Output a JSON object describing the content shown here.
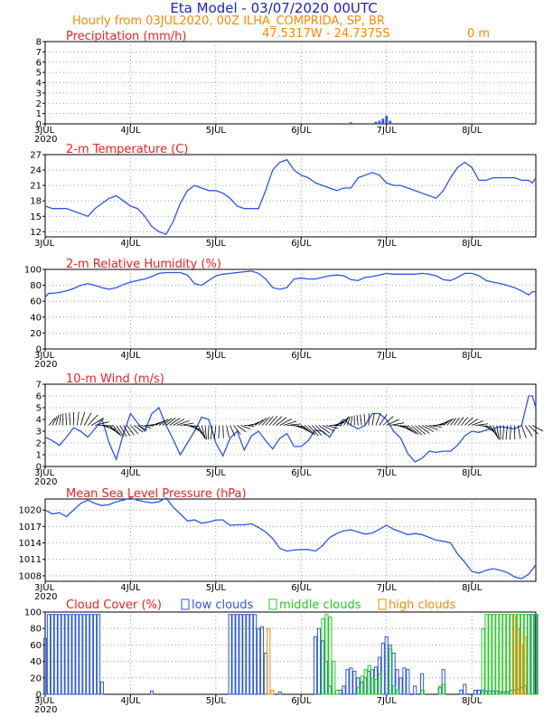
{
  "header": {
    "title": "Eta Model - 03/07/2020 00UTC",
    "subtitle": "Hourly from 03JUL2020, 00Z  ILHA_COMPRIDA, SP, BR",
    "coords": "47.5317W - 24.7375S",
    "elevation": "0  m"
  },
  "colors": {
    "title": "#2222cc",
    "subtitle": "#ff8800",
    "panel_title": "#ee2222",
    "series": "#2b57e6",
    "barbs": "#000000",
    "low_clouds": "#2b57e6",
    "middle_clouds": "#22cc22",
    "high_clouds": "#ff8800"
  },
  "x_axis": {
    "range_hours": [
      0,
      138
    ],
    "ticks": [
      {
        "hour": 0,
        "label": "3JUL",
        "year": "2020"
      },
      {
        "hour": 24,
        "label": "4JUL"
      },
      {
        "hour": 48,
        "label": "5JUL"
      },
      {
        "hour": 72,
        "label": "6JUL"
      },
      {
        "hour": 96,
        "label": "7JUL"
      },
      {
        "hour": 120,
        "label": "8JUL"
      }
    ]
  },
  "chart_data": [
    {
      "id": "precip",
      "type": "bar",
      "title": "Precipitation (mm/h)",
      "ylim": [
        0,
        8
      ],
      "yticks": [
        0,
        1,
        2,
        3,
        4,
        5,
        6,
        7,
        8
      ],
      "dashed_line": 0,
      "bars": [
        {
          "x": 86,
          "v": 0.15
        },
        {
          "x": 93,
          "v": 0.2
        },
        {
          "x": 94,
          "v": 0.3
        },
        {
          "x": 95,
          "v": 0.5
        },
        {
          "x": 96,
          "v": 0.8
        },
        {
          "x": 97,
          "v": 0.3
        }
      ]
    },
    {
      "id": "temp",
      "type": "line",
      "title": "2-m Temperature (C)",
      "ylim": [
        11,
        27
      ],
      "yticks": [
        12,
        15,
        18,
        21,
        24,
        27
      ],
      "x": [
        0,
        2,
        4,
        6,
        8,
        10,
        12,
        14,
        16,
        18,
        20,
        22,
        24,
        26,
        28,
        30,
        32,
        34,
        36,
        38,
        40,
        42,
        44,
        46,
        48,
        50,
        52,
        54,
        56,
        58,
        60,
        62,
        64,
        66,
        68,
        70,
        72,
        74,
        76,
        78,
        80,
        82,
        84,
        86,
        88,
        90,
        92,
        94,
        96,
        98,
        100,
        102,
        104,
        106,
        108,
        110,
        112,
        114,
        116,
        118,
        120,
        122,
        124,
        126,
        128,
        130,
        132,
        134,
        136,
        137,
        138
      ],
      "values": [
        17,
        16.5,
        16.5,
        16.5,
        16,
        15.5,
        15,
        16.5,
        17.5,
        18.5,
        19,
        18,
        17,
        16.5,
        15,
        13,
        12,
        11.5,
        14,
        17.5,
        20,
        21,
        20.5,
        20,
        20,
        19.5,
        18.5,
        17,
        16.5,
        16.5,
        16.5,
        20,
        24,
        25.5,
        26,
        24,
        23,
        22.5,
        21.5,
        21,
        20.5,
        20,
        20.5,
        20.5,
        22.5,
        23,
        23.5,
        23,
        21.5,
        21,
        21,
        20.5,
        20,
        19.5,
        19,
        18.5,
        20,
        22.5,
        24.5,
        25.5,
        24.5,
        22,
        22,
        22.5,
        22.5,
        22.5,
        22.5,
        22,
        22,
        21.5,
        22.5
      ]
    },
    {
      "id": "rh",
      "type": "line",
      "title": "2-m Relative Humidity (%)",
      "ylim": [
        0,
        100
      ],
      "yticks": [
        0,
        20,
        40,
        60,
        80,
        100
      ],
      "dashed_line": 100,
      "x": [
        0,
        1,
        2,
        4,
        6,
        8,
        10,
        12,
        14,
        16,
        18,
        20,
        22,
        24,
        26,
        28,
        30,
        32,
        34,
        36,
        38,
        40,
        42,
        44,
        46,
        48,
        50,
        52,
        54,
        56,
        58,
        60,
        62,
        64,
        66,
        68,
        70,
        72,
        74,
        76,
        78,
        80,
        82,
        84,
        86,
        88,
        90,
        92,
        94,
        96,
        98,
        100,
        102,
        104,
        106,
        108,
        110,
        112,
        114,
        116,
        118,
        120,
        122,
        124,
        126,
        128,
        130,
        132,
        134,
        136,
        137,
        138
      ],
      "values": [
        65,
        70,
        70,
        71,
        73,
        76,
        80,
        82,
        80,
        77,
        75,
        77,
        81,
        84,
        86,
        88,
        91,
        95,
        96,
        96,
        96,
        93,
        82,
        80,
        86,
        92,
        94,
        95,
        96,
        97,
        98,
        95,
        88,
        77,
        75,
        77,
        88,
        89,
        88,
        88,
        90,
        92,
        93,
        92,
        87,
        86,
        90,
        91,
        93,
        95,
        94,
        94,
        94,
        94,
        95,
        94,
        92,
        87,
        86,
        90,
        95,
        95,
        92,
        86,
        84,
        82,
        80,
        77,
        73,
        68,
        72,
        72
      ]
    },
    {
      "id": "wind",
      "type": "line",
      "title": "10-m Wind (m/s)",
      "ylim": [
        0,
        7
      ],
      "yticks": [
        0,
        1,
        2,
        3,
        4,
        5,
        6,
        7
      ],
      "x": [
        0,
        2,
        4,
        6,
        8,
        10,
        12,
        14,
        16,
        18,
        20,
        22,
        24,
        26,
        28,
        30,
        32,
        34,
        36,
        38,
        40,
        42,
        44,
        46,
        48,
        50,
        52,
        54,
        56,
        58,
        60,
        62,
        64,
        66,
        68,
        70,
        72,
        74,
        76,
        78,
        80,
        82,
        84,
        86,
        88,
        90,
        92,
        94,
        96,
        98,
        100,
        102,
        104,
        106,
        108,
        110,
        112,
        114,
        116,
        118,
        120,
        122,
        124,
        126,
        128,
        130,
        132,
        134,
        136,
        137,
        138
      ],
      "values": [
        2.5,
        2.2,
        1.8,
        2.5,
        3.3,
        3,
        2.5,
        3.2,
        4,
        2,
        0.6,
        2.8,
        4.5,
        3.7,
        3,
        4.5,
        5,
        3.5,
        2.3,
        1,
        2,
        3,
        4.2,
        4,
        2,
        0.9,
        2.4,
        3,
        1.4,
        2.6,
        3,
        2.2,
        1.5,
        2.4,
        2.8,
        1.7,
        1.7,
        2.2,
        3.1,
        3,
        2.5,
        3.5,
        4,
        3.5,
        3.2,
        3.5,
        4.5,
        4.5,
        4,
        3,
        2.4,
        1.1,
        0.4,
        0.7,
        1.3,
        1.2,
        1.3,
        1.3,
        1.8,
        2.6,
        3,
        2.9,
        3.1,
        3.2,
        3.4,
        3.3,
        3.2,
        3.5,
        6,
        6,
        5
      ]
    },
    {
      "id": "mslp",
      "type": "line",
      "title": "Mean Sea Level Pressure (hPa)",
      "ylim": [
        1007,
        1022
      ],
      "yticks": [
        1008,
        1011,
        1014,
        1017,
        1020
      ],
      "x": [
        0,
        2,
        4,
        6,
        8,
        10,
        12,
        14,
        16,
        18,
        20,
        22,
        24,
        26,
        28,
        30,
        32,
        34,
        36,
        38,
        40,
        42,
        44,
        46,
        48,
        50,
        52,
        54,
        56,
        58,
        60,
        62,
        64,
        66,
        68,
        70,
        72,
        74,
        76,
        78,
        80,
        82,
        84,
        86,
        88,
        90,
        92,
        94,
        96,
        98,
        100,
        102,
        104,
        106,
        108,
        110,
        112,
        114,
        116,
        118,
        120,
        122,
        124,
        126,
        128,
        130,
        132,
        134,
        136,
        138
      ],
      "values": [
        1020,
        1019.3,
        1019.5,
        1018.8,
        1020,
        1021.2,
        1021.8,
        1021.2,
        1020.8,
        1021,
        1021.5,
        1021.8,
        1022.2,
        1021.8,
        1021.5,
        1021.3,
        1021.5,
        1022.2,
        1020.5,
        1019.3,
        1018,
        1018.2,
        1017.6,
        1017.8,
        1018.2,
        1018.2,
        1017.2,
        1017.3,
        1017.3,
        1017.5,
        1016.8,
        1016,
        1014.8,
        1013,
        1012.5,
        1012.7,
        1012.8,
        1012.8,
        1012.5,
        1013.5,
        1015,
        1015.7,
        1016.2,
        1016.4,
        1016,
        1015.6,
        1015.8,
        1016.5,
        1017.2,
        1016.5,
        1016,
        1015.5,
        1015.7,
        1015.5,
        1015,
        1014.5,
        1014.3,
        1014,
        1012,
        1010.5,
        1008.8,
        1008.5,
        1009,
        1009.3,
        1009,
        1008.6,
        1007.8,
        1007.5,
        1008.3,
        1010
      ]
    },
    {
      "id": "cloud",
      "type": "bar",
      "title": "Cloud Cover (%)",
      "legend": [
        "low clouds",
        "middle clouds",
        "high clouds"
      ],
      "ylim": [
        0,
        100
      ],
      "yticks": [
        0,
        20,
        40,
        60,
        80,
        100
      ],
      "dashed_line": 100,
      "low": [
        {
          "x": 0,
          "v": 68
        },
        {
          "x": 1,
          "v": 97
        },
        {
          "x": 2,
          "v": 97
        },
        {
          "x": 3,
          "v": 97
        },
        {
          "x": 4,
          "v": 97
        },
        {
          "x": 5,
          "v": 97
        },
        {
          "x": 6,
          "v": 97
        },
        {
          "x": 7,
          "v": 97
        },
        {
          "x": 8,
          "v": 97
        },
        {
          "x": 9,
          "v": 97
        },
        {
          "x": 10,
          "v": 97
        },
        {
          "x": 11,
          "v": 97
        },
        {
          "x": 12,
          "v": 97
        },
        {
          "x": 13,
          "v": 97
        },
        {
          "x": 14,
          "v": 97
        },
        {
          "x": 15,
          "v": 97
        },
        {
          "x": 16,
          "v": 15
        },
        {
          "x": 30,
          "v": 4
        },
        {
          "x": 52,
          "v": 97
        },
        {
          "x": 53,
          "v": 97
        },
        {
          "x": 54,
          "v": 97
        },
        {
          "x": 55,
          "v": 97
        },
        {
          "x": 56,
          "v": 97
        },
        {
          "x": 57,
          "v": 97
        },
        {
          "x": 58,
          "v": 97
        },
        {
          "x": 59,
          "v": 97
        },
        {
          "x": 60,
          "v": 80
        },
        {
          "x": 61,
          "v": 82
        },
        {
          "x": 62,
          "v": 50
        },
        {
          "x": 66,
          "v": 3
        },
        {
          "x": 76,
          "v": 70
        },
        {
          "x": 77,
          "v": 80
        },
        {
          "x": 78,
          "v": 65
        },
        {
          "x": 79,
          "v": 40
        },
        {
          "x": 80,
          "v": 10
        },
        {
          "x": 83,
          "v": 5
        },
        {
          "x": 84,
          "v": 10
        },
        {
          "x": 85,
          "v": 30
        },
        {
          "x": 86,
          "v": 32
        },
        {
          "x": 87,
          "v": 28
        },
        {
          "x": 88,
          "v": 20
        },
        {
          "x": 89,
          "v": 15
        },
        {
          "x": 90,
          "v": 20
        },
        {
          "x": 91,
          "v": 28
        },
        {
          "x": 92,
          "v": 30
        },
        {
          "x": 93,
          "v": 33
        },
        {
          "x": 94,
          "v": 45
        },
        {
          "x": 95,
          "v": 62
        },
        {
          "x": 96,
          "v": 70
        },
        {
          "x": 97,
          "v": 60
        },
        {
          "x": 98,
          "v": 50
        },
        {
          "x": 99,
          "v": 30
        },
        {
          "x": 100,
          "v": 20
        },
        {
          "x": 101,
          "v": 32
        },
        {
          "x": 102,
          "v": 30
        },
        {
          "x": 104,
          "v": 10
        },
        {
          "x": 106,
          "v": 25
        },
        {
          "x": 111,
          "v": 8
        },
        {
          "x": 112,
          "v": 30
        },
        {
          "x": 117,
          "v": 5
        },
        {
          "x": 118,
          "v": 12
        },
        {
          "x": 121,
          "v": 5
        },
        {
          "x": 122,
          "v": 5
        },
        {
          "x": 123,
          "v": 5
        },
        {
          "x": 124,
          "v": 4
        },
        {
          "x": 125,
          "v": 4
        },
        {
          "x": 126,
          "v": 4
        },
        {
          "x": 127,
          "v": 4
        },
        {
          "x": 128,
          "v": 3
        },
        {
          "x": 129,
          "v": 3
        },
        {
          "x": 130,
          "v": 3
        },
        {
          "x": 131,
          "v": 5
        },
        {
          "x": 132,
          "v": 5
        },
        {
          "x": 133,
          "v": 6
        },
        {
          "x": 134,
          "v": 8
        },
        {
          "x": 135,
          "v": 10
        },
        {
          "x": 136,
          "v": 97
        },
        {
          "x": 137,
          "v": 97
        },
        {
          "x": 138,
          "v": 97
        }
      ],
      "middle": [
        {
          "x": 78,
          "v": 92
        },
        {
          "x": 79,
          "v": 97
        },
        {
          "x": 80,
          "v": 94
        },
        {
          "x": 81,
          "v": 40
        },
        {
          "x": 82,
          "v": 5
        },
        {
          "x": 88,
          "v": 8
        },
        {
          "x": 89,
          "v": 22
        },
        {
          "x": 90,
          "v": 30
        },
        {
          "x": 91,
          "v": 35
        },
        {
          "x": 92,
          "v": 20
        },
        {
          "x": 93,
          "v": 18
        },
        {
          "x": 94,
          "v": 25
        },
        {
          "x": 97,
          "v": 55
        },
        {
          "x": 98,
          "v": 10
        },
        {
          "x": 99,
          "v": 5
        },
        {
          "x": 106,
          "v": 5
        },
        {
          "x": 111,
          "v": 10
        },
        {
          "x": 112,
          "v": 12
        },
        {
          "x": 123,
          "v": 80
        },
        {
          "x": 124,
          "v": 97
        },
        {
          "x": 125,
          "v": 97
        },
        {
          "x": 126,
          "v": 97
        },
        {
          "x": 127,
          "v": 97
        },
        {
          "x": 128,
          "v": 97
        },
        {
          "x": 129,
          "v": 97
        },
        {
          "x": 130,
          "v": 97
        },
        {
          "x": 131,
          "v": 97
        },
        {
          "x": 132,
          "v": 97
        },
        {
          "x": 133,
          "v": 97
        },
        {
          "x": 134,
          "v": 97
        },
        {
          "x": 135,
          "v": 97
        },
        {
          "x": 136,
          "v": 97
        },
        {
          "x": 137,
          "v": 97
        },
        {
          "x": 138,
          "v": 97
        }
      ],
      "high": [
        {
          "x": 63,
          "v": 80
        },
        {
          "x": 64,
          "v": 5
        },
        {
          "x": 132,
          "v": 95
        },
        {
          "x": 133,
          "v": 80
        },
        {
          "x": 134,
          "v": 60
        },
        {
          "x": 135,
          "v": 70
        }
      ]
    }
  ]
}
